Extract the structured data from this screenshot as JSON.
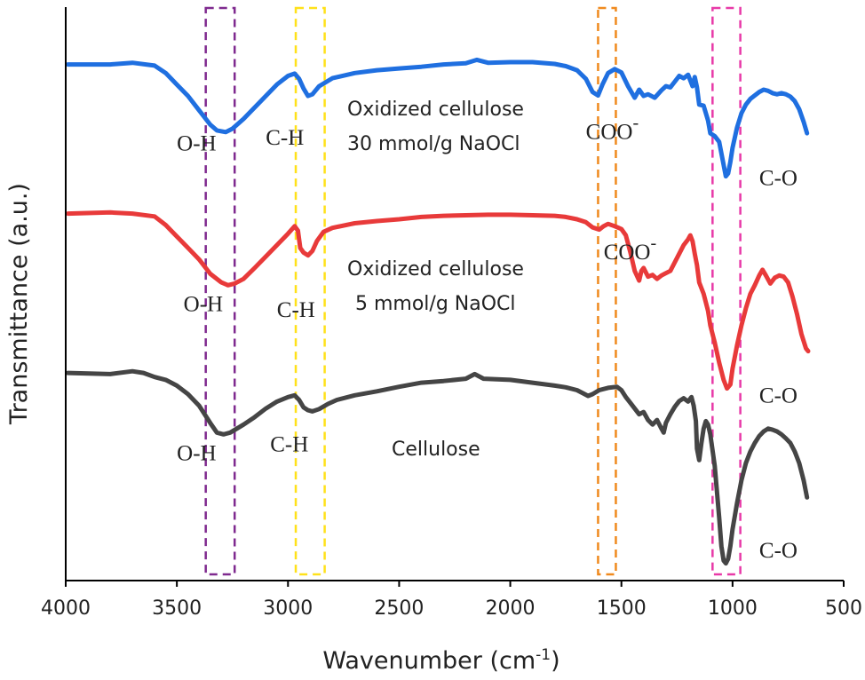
{
  "chart_data": {
    "type": "line",
    "title": "",
    "xlabel": "Wavenumber (cm",
    "xlabel_sup": "-1",
    "xlabel_tail": ")",
    "ylabel": "Transmittance (a.u.)",
    "xlim": [
      4000,
      500
    ],
    "ylim": [
      0,
      100
    ],
    "x_ticks": [
      4000,
      3500,
      3000,
      2500,
      2000,
      1500,
      1000,
      500
    ],
    "series": [
      {
        "name": "Oxidized cellulose 30 mmol/g NaOCl",
        "label_line1": "Oxidized cellulose",
        "label_line2": "30 mmol/g NaOCl",
        "color": "#1f6fe0",
        "points": [
          [
            3990,
            90
          ],
          [
            3800,
            90
          ],
          [
            3700,
            90.3
          ],
          [
            3600,
            89.8
          ],
          [
            3550,
            88.5
          ],
          [
            3500,
            86.5
          ],
          [
            3450,
            84.5
          ],
          [
            3400,
            82
          ],
          [
            3350,
            79.5
          ],
          [
            3320,
            78.5
          ],
          [
            3280,
            78.2
          ],
          [
            3250,
            78.8
          ],
          [
            3200,
            80.5
          ],
          [
            3150,
            82.5
          ],
          [
            3100,
            84.5
          ],
          [
            3050,
            86.5
          ],
          [
            3000,
            88
          ],
          [
            2970,
            88.4
          ],
          [
            2950,
            87.5
          ],
          [
            2930,
            85.8
          ],
          [
            2910,
            84.5
          ],
          [
            2890,
            84.8
          ],
          [
            2860,
            86.2
          ],
          [
            2800,
            87.6
          ],
          [
            2700,
            88.5
          ],
          [
            2600,
            89
          ],
          [
            2500,
            89.3
          ],
          [
            2400,
            89.6
          ],
          [
            2300,
            90
          ],
          [
            2200,
            90.2
          ],
          [
            2150,
            90.8
          ],
          [
            2100,
            90.3
          ],
          [
            2000,
            90.4
          ],
          [
            1900,
            90.4
          ],
          [
            1800,
            90.1
          ],
          [
            1750,
            89.7
          ],
          [
            1700,
            89
          ],
          [
            1660,
            87.5
          ],
          [
            1630,
            85.2
          ],
          [
            1605,
            84.6
          ],
          [
            1585,
            86.5
          ],
          [
            1560,
            88.5
          ],
          [
            1530,
            89.2
          ],
          [
            1500,
            88.6
          ],
          [
            1470,
            86.2
          ],
          [
            1440,
            84.2
          ],
          [
            1420,
            85.6
          ],
          [
            1400,
            84.5
          ],
          [
            1380,
            84.8
          ],
          [
            1350,
            84.2
          ],
          [
            1320,
            85.5
          ],
          [
            1300,
            86.2
          ],
          [
            1280,
            86
          ],
          [
            1260,
            87
          ],
          [
            1240,
            88
          ],
          [
            1220,
            87.6
          ],
          [
            1200,
            88.2
          ],
          [
            1180,
            86.2
          ],
          [
            1170,
            87.8
          ],
          [
            1160,
            86
          ],
          [
            1150,
            83
          ],
          [
            1130,
            82.8
          ],
          [
            1110,
            80.2
          ],
          [
            1100,
            78
          ],
          [
            1080,
            77.5
          ],
          [
            1060,
            76.5
          ],
          [
            1040,
            72.5
          ],
          [
            1030,
            70.5
          ],
          [
            1020,
            71
          ],
          [
            1010,
            73
          ],
          [
            1000,
            75.5
          ],
          [
            980,
            79
          ],
          [
            960,
            81.5
          ],
          [
            940,
            83
          ],
          [
            920,
            84
          ],
          [
            900,
            84.6
          ],
          [
            880,
            85.2
          ],
          [
            860,
            85.6
          ],
          [
            840,
            85.4
          ],
          [
            820,
            85
          ],
          [
            800,
            84.8
          ],
          [
            780,
            85
          ],
          [
            760,
            84.8
          ],
          [
            740,
            84.4
          ],
          [
            720,
            83.6
          ],
          [
            700,
            82.2
          ],
          [
            680,
            80
          ],
          [
            665,
            78
          ]
        ]
      },
      {
        "name": "Oxidized cellulose 5 mmol/g NaOCl",
        "label_line1": "Oxidized cellulose",
        "label_line2": "5 mmol/g NaOCl",
        "color": "#e83a3a",
        "points": [
          [
            3990,
            64
          ],
          [
            3800,
            64.2
          ],
          [
            3700,
            64
          ],
          [
            3600,
            63.5
          ],
          [
            3550,
            62
          ],
          [
            3500,
            60
          ],
          [
            3450,
            58
          ],
          [
            3400,
            56
          ],
          [
            3350,
            53.5
          ],
          [
            3300,
            52
          ],
          [
            3270,
            51.5
          ],
          [
            3240,
            51.8
          ],
          [
            3200,
            52.6
          ],
          [
            3150,
            54.5
          ],
          [
            3100,
            56.5
          ],
          [
            3050,
            58.5
          ],
          [
            3000,
            60.5
          ],
          [
            2970,
            61.8
          ],
          [
            2955,
            61
          ],
          [
            2945,
            58
          ],
          [
            2930,
            57.2
          ],
          [
            2910,
            56.7
          ],
          [
            2890,
            57.5
          ],
          [
            2870,
            59.2
          ],
          [
            2840,
            60.8
          ],
          [
            2800,
            61.5
          ],
          [
            2700,
            62.3
          ],
          [
            2600,
            62.7
          ],
          [
            2500,
            63
          ],
          [
            2400,
            63.4
          ],
          [
            2300,
            63.6
          ],
          [
            2200,
            63.7
          ],
          [
            2100,
            63.8
          ],
          [
            2000,
            63.8
          ],
          [
            1900,
            63.7
          ],
          [
            1800,
            63.6
          ],
          [
            1750,
            63.4
          ],
          [
            1700,
            63
          ],
          [
            1660,
            62.5
          ],
          [
            1630,
            61.6
          ],
          [
            1600,
            61.2
          ],
          [
            1580,
            61.8
          ],
          [
            1560,
            62.2
          ],
          [
            1530,
            61.8
          ],
          [
            1500,
            61.3
          ],
          [
            1480,
            60.2
          ],
          [
            1460,
            57.3
          ],
          [
            1440,
            54
          ],
          [
            1420,
            52.3
          ],
          [
            1410,
            54
          ],
          [
            1400,
            54.5
          ],
          [
            1380,
            53
          ],
          [
            1360,
            53.3
          ],
          [
            1340,
            52.6
          ],
          [
            1320,
            53.2
          ],
          [
            1300,
            53.6
          ],
          [
            1280,
            54
          ],
          [
            1260,
            55.5
          ],
          [
            1240,
            57
          ],
          [
            1220,
            58.5
          ],
          [
            1200,
            59.5
          ],
          [
            1190,
            60.2
          ],
          [
            1180,
            59.2
          ],
          [
            1170,
            57
          ],
          [
            1160,
            55
          ],
          [
            1150,
            52
          ],
          [
            1130,
            50
          ],
          [
            1110,
            47
          ],
          [
            1100,
            44.5
          ],
          [
            1080,
            41.5
          ],
          [
            1060,
            38
          ],
          [
            1040,
            35
          ],
          [
            1025,
            33.5
          ],
          [
            1010,
            34.2
          ],
          [
            1000,
            37
          ],
          [
            980,
            41
          ],
          [
            960,
            44.5
          ],
          [
            940,
            47.5
          ],
          [
            920,
            50
          ],
          [
            900,
            51.5
          ],
          [
            880,
            53.2
          ],
          [
            865,
            54.2
          ],
          [
            850,
            53.2
          ],
          [
            830,
            51.8
          ],
          [
            810,
            52.8
          ],
          [
            790,
            53.2
          ],
          [
            770,
            53
          ],
          [
            750,
            52
          ],
          [
            730,
            49.5
          ],
          [
            710,
            46.5
          ],
          [
            690,
            43
          ],
          [
            670,
            40.5
          ],
          [
            660,
            40
          ]
        ]
      },
      {
        "name": "Cellulose",
        "label_line1": "Cellulose",
        "label_line2": "",
        "color": "#454545",
        "points": [
          [
            3990,
            36.2
          ],
          [
            3800,
            36
          ],
          [
            3700,
            36.5
          ],
          [
            3650,
            36.2
          ],
          [
            3600,
            35.5
          ],
          [
            3550,
            35
          ],
          [
            3500,
            34
          ],
          [
            3450,
            32.5
          ],
          [
            3400,
            30.5
          ],
          [
            3350,
            27.5
          ],
          [
            3320,
            25.8
          ],
          [
            3290,
            25.5
          ],
          [
            3260,
            25.8
          ],
          [
            3230,
            26.5
          ],
          [
            3200,
            27.2
          ],
          [
            3150,
            28.5
          ],
          [
            3100,
            30
          ],
          [
            3050,
            31.2
          ],
          [
            3000,
            32
          ],
          [
            2970,
            32.3
          ],
          [
            2950,
            31.5
          ],
          [
            2930,
            30.2
          ],
          [
            2910,
            29.7
          ],
          [
            2890,
            29.5
          ],
          [
            2860,
            29.9
          ],
          [
            2820,
            30.8
          ],
          [
            2780,
            31.5
          ],
          [
            2700,
            32.3
          ],
          [
            2600,
            33
          ],
          [
            2500,
            33.8
          ],
          [
            2400,
            34.5
          ],
          [
            2300,
            34.8
          ],
          [
            2200,
            35.2
          ],
          [
            2160,
            36
          ],
          [
            2120,
            35.2
          ],
          [
            2000,
            35
          ],
          [
            1900,
            34.5
          ],
          [
            1800,
            34
          ],
          [
            1750,
            33.7
          ],
          [
            1700,
            33.2
          ],
          [
            1670,
            32.6
          ],
          [
            1650,
            32.2
          ],
          [
            1630,
            32.5
          ],
          [
            1600,
            33.2
          ],
          [
            1560,
            33.6
          ],
          [
            1520,
            33.8
          ],
          [
            1500,
            33.2
          ],
          [
            1480,
            32
          ],
          [
            1460,
            31
          ],
          [
            1440,
            30
          ],
          [
            1420,
            29
          ],
          [
            1400,
            29.4
          ],
          [
            1380,
            28
          ],
          [
            1360,
            27.2
          ],
          [
            1340,
            28
          ],
          [
            1320,
            26.5
          ],
          [
            1310,
            25.8
          ],
          [
            1300,
            27.5
          ],
          [
            1280,
            29
          ],
          [
            1260,
            30.3
          ],
          [
            1240,
            31.3
          ],
          [
            1220,
            31.8
          ],
          [
            1200,
            31.2
          ],
          [
            1185,
            32
          ],
          [
            1175,
            30.5
          ],
          [
            1165,
            27.8
          ],
          [
            1160,
            23
          ],
          [
            1150,
            21
          ],
          [
            1140,
            24
          ],
          [
            1130,
            26.5
          ],
          [
            1120,
            27.8
          ],
          [
            1110,
            27.2
          ],
          [
            1100,
            25.5
          ],
          [
            1080,
            20
          ],
          [
            1060,
            11
          ],
          [
            1050,
            6
          ],
          [
            1040,
            3.5
          ],
          [
            1030,
            3
          ],
          [
            1020,
            3.8
          ],
          [
            1010,
            6
          ],
          [
            1000,
            9
          ],
          [
            980,
            13.5
          ],
          [
            960,
            17.5
          ],
          [
            940,
            20.5
          ],
          [
            920,
            22.5
          ],
          [
            900,
            24
          ],
          [
            880,
            25.2
          ],
          [
            860,
            26
          ],
          [
            840,
            26.5
          ],
          [
            820,
            26.3
          ],
          [
            800,
            26
          ],
          [
            780,
            25.5
          ],
          [
            760,
            24.8
          ],
          [
            740,
            24
          ],
          [
            720,
            22.5
          ],
          [
            700,
            20.5
          ],
          [
            680,
            17.5
          ],
          [
            665,
            14.5
          ]
        ]
      }
    ],
    "highlight_regions": [
      {
        "band": "O-H",
        "x_range": [
          3370,
          3240
        ],
        "color": "#7f2a8f"
      },
      {
        "band": "C-H",
        "x_range": [
          2965,
          2835
        ],
        "color": "#ffe11a"
      },
      {
        "band": "COO-",
        "x_range": [
          1605,
          1525
        ],
        "color": "#f08a1e"
      },
      {
        "band": "C-O",
        "x_range": [
          1090,
          965
        ],
        "color": "#e83aa8"
      }
    ],
    "annotations": [
      {
        "text": "O-H",
        "series": 0,
        "x": 3500,
        "y": 75
      },
      {
        "text": "C-H",
        "series": 0,
        "x": 3100,
        "y": 76
      },
      {
        "text": "COO",
        "sup": "-",
        "series": 0,
        "x": 1660,
        "y": 77
      },
      {
        "text": "C-O",
        "series": 0,
        "x": 880,
        "y": 69
      },
      {
        "text": "O-H",
        "series": 1,
        "x": 3470,
        "y": 47
      },
      {
        "text": "C-H",
        "series": 1,
        "x": 3050,
        "y": 46
      },
      {
        "text": "COO",
        "sup": "-",
        "series": 1,
        "x": 1580,
        "y": 56
      },
      {
        "text": "C-O",
        "series": 1,
        "x": 880,
        "y": 31
      },
      {
        "text": "O-H",
        "series": 2,
        "x": 3500,
        "y": 21
      },
      {
        "text": "C-H",
        "series": 2,
        "x": 3080,
        "y": 22.5
      },
      {
        "text": "C-O",
        "series": 2,
        "x": 880,
        "y": 4
      }
    ]
  }
}
